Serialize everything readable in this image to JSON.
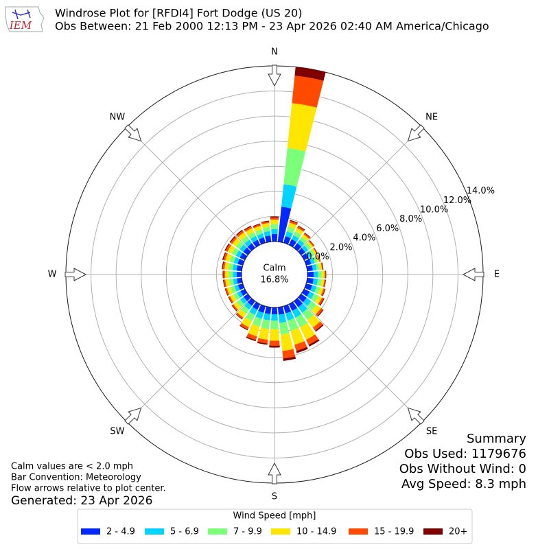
{
  "logo_text": "IEM",
  "chart_data": {
    "type": "windrose",
    "title": "Windrose Plot for [RFDI4] Fort Dodge (US 20)",
    "subtitle": "Obs Between: 21 Feb 2000 12:13 PM - 23 Apr 2026 02:40 AM America/Chicago",
    "x": [
      0,
      10,
      20,
      30,
      40,
      50,
      60,
      70,
      80,
      90,
      100,
      110,
      120,
      130,
      140,
      150,
      160,
      170,
      180,
      190,
      200,
      210,
      220,
      230,
      240,
      250,
      260,
      270,
      280,
      290,
      300,
      310,
      320,
      330,
      340,
      350
    ],
    "xlim": [
      0,
      360
    ],
    "xticks": [
      {
        "value": 0,
        "label": "N"
      },
      {
        "value": 45,
        "label": "NE"
      },
      {
        "value": 90,
        "label": "E"
      },
      {
        "value": 135,
        "label": "SE"
      },
      {
        "value": 180,
        "label": "S"
      },
      {
        "value": 225,
        "label": "SW"
      },
      {
        "value": 270,
        "label": "W"
      },
      {
        "value": 315,
        "label": "NW"
      }
    ],
    "ylim": [
      0,
      14
    ],
    "yticks": [
      {
        "value": 0,
        "label": "0.0%"
      },
      {
        "value": 2,
        "label": "2.0%"
      },
      {
        "value": 4,
        "label": "4.0%"
      },
      {
        "value": 6,
        "label": "6.0%"
      },
      {
        "value": 8,
        "label": "8.0%"
      },
      {
        "value": 10,
        "label": "10.0%"
      },
      {
        "value": 12,
        "label": "12.0%"
      },
      {
        "value": 14,
        "label": "14.0%"
      }
    ],
    "grid": true,
    "calm": {
      "label": "Calm",
      "value": 16.8,
      "value_label": "16.8%"
    },
    "legend_title": "Wind Speed [mph]",
    "legend_position": "lower center",
    "series": [
      {
        "name": "2 - 4.9",
        "color": "#0028ff",
        "values": [
          0.6,
          2.8,
          0.55,
          0.5,
          0.45,
          0.4,
          0.4,
          0.42,
          0.45,
          0.5,
          0.5,
          0.5,
          0.5,
          0.55,
          0.6,
          0.6,
          0.6,
          0.6,
          0.55,
          0.55,
          0.55,
          0.5,
          0.45,
          0.42,
          0.4,
          0.4,
          0.4,
          0.4,
          0.42,
          0.43,
          0.45,
          0.45,
          0.45,
          0.45,
          0.45,
          0.5
        ]
      },
      {
        "name": "5 - 6.9",
        "color": "#00d4ff",
        "values": [
          0.4,
          1.8,
          0.4,
          0.35,
          0.33,
          0.3,
          0.28,
          0.28,
          0.3,
          0.35,
          0.35,
          0.35,
          0.38,
          0.45,
          0.55,
          0.6,
          0.6,
          0.65,
          0.5,
          0.5,
          0.5,
          0.45,
          0.38,
          0.33,
          0.3,
          0.3,
          0.3,
          0.3,
          0.32,
          0.33,
          0.35,
          0.35,
          0.35,
          0.34,
          0.33,
          0.35
        ]
      },
      {
        "name": "7 - 9.9",
        "color": "#7cff79",
        "values": [
          0.4,
          2.9,
          0.4,
          0.35,
          0.3,
          0.27,
          0.24,
          0.23,
          0.25,
          0.3,
          0.3,
          0.32,
          0.38,
          0.5,
          0.7,
          0.85,
          0.85,
          0.95,
          0.7,
          0.7,
          0.65,
          0.55,
          0.4,
          0.35,
          0.32,
          0.32,
          0.32,
          0.32,
          0.33,
          0.35,
          0.37,
          0.37,
          0.37,
          0.35,
          0.33,
          0.35
        ]
      },
      {
        "name": "10 - 14.9",
        "color": "#ffe600",
        "values": [
          0.35,
          3.6,
          0.33,
          0.3,
          0.25,
          0.2,
          0.18,
          0.17,
          0.18,
          0.22,
          0.22,
          0.26,
          0.32,
          0.45,
          0.75,
          1.1,
          1.15,
          1.3,
          0.9,
          0.85,
          0.8,
          0.55,
          0.38,
          0.32,
          0.3,
          0.3,
          0.3,
          0.3,
          0.32,
          0.35,
          0.37,
          0.37,
          0.36,
          0.34,
          0.3,
          0.3
        ]
      },
      {
        "name": "15 - 19.9",
        "color": "#ff4a00",
        "values": [
          0.17,
          2.2,
          0.15,
          0.14,
          0.12,
          0.09,
          0.07,
          0.07,
          0.08,
          0.09,
          0.09,
          0.12,
          0.15,
          0.18,
          0.3,
          0.45,
          0.5,
          0.6,
          0.4,
          0.3,
          0.3,
          0.2,
          0.14,
          0.12,
          0.12,
          0.12,
          0.12,
          0.13,
          0.14,
          0.16,
          0.17,
          0.17,
          0.17,
          0.15,
          0.13,
          0.13
        ]
      },
      {
        "name": "20+",
        "color": "#800000",
        "values": [
          0.08,
          0.7,
          0.07,
          0.06,
          0.05,
          0.04,
          0.03,
          0.03,
          0.04,
          0.04,
          0.04,
          0.05,
          0.07,
          0.07,
          0.1,
          0.15,
          0.18,
          0.2,
          0.15,
          0.1,
          0.1,
          0.07,
          0.05,
          0.05,
          0.05,
          0.05,
          0.06,
          0.06,
          0.07,
          0.08,
          0.08,
          0.08,
          0.08,
          0.07,
          0.06,
          0.06
        ]
      }
    ],
    "notes": [
      "Calm values are < 2.0 mph",
      "Bar Convention: Meteorology",
      "Flow arrows relative to plot center."
    ],
    "generated": "Generated: 23 Apr 2026",
    "summary": [
      "Summary",
      "Obs Used: 1179676",
      "Obs Without Wind: 0",
      "Avg Speed: 8.3 mph"
    ]
  }
}
